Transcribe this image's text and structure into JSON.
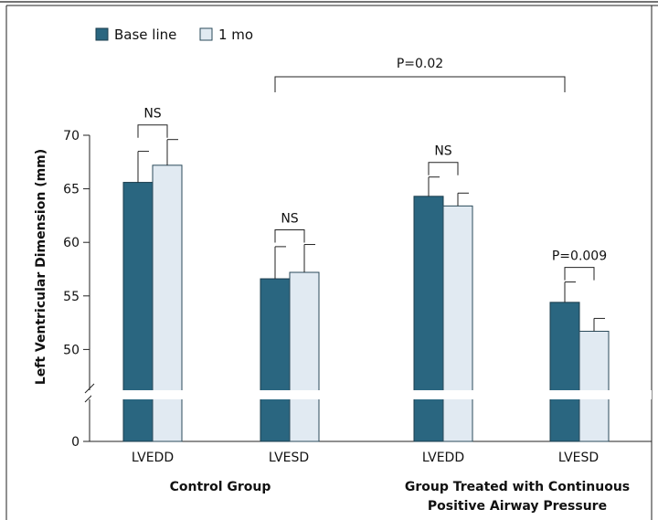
{
  "chart_data": {
    "type": "bar",
    "ylabel": "Left Ventricular Dimension (mm)",
    "ylim": [
      45,
      72
    ],
    "axis_break": true,
    "zero_tick": 0,
    "yticks": [
      70,
      65,
      60,
      55,
      50
    ],
    "grid": false,
    "legend_position": "top-left",
    "series": [
      {
        "name": "Base line",
        "color": "#2a6680",
        "values": [
          65.6,
          56.6,
          64.3,
          54.4
        ],
        "errors": [
          2.9,
          3.0,
          1.8,
          1.9
        ]
      },
      {
        "name": "1 mo",
        "color": "#e1eaf2",
        "values": [
          67.2,
          57.2,
          63.4,
          51.7
        ],
        "errors": [
          2.4,
          2.6,
          1.2,
          1.2
        ]
      }
    ],
    "categories": [
      "LVEDD",
      "LVESD",
      "LVEDD",
      "LVESD"
    ],
    "groups": [
      {
        "label": "Control Group",
        "lines": [
          "Control Group"
        ]
      },
      {
        "label": "Group Treated with Continuous Positive Airway Pressure",
        "lines": [
          "Group Treated with Continuous",
          "Positive Airway Pressure"
        ]
      }
    ],
    "annotations": {
      "pairs": [
        "NS",
        "NS",
        "NS",
        "P=0.009"
      ],
      "overall": "P=0.02"
    }
  }
}
